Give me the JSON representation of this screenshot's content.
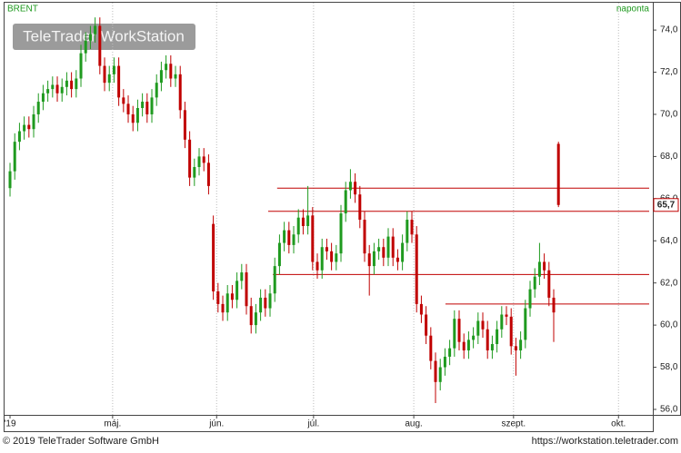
{
  "chart_data": {
    "type": "candlestick",
    "title": "BRENT",
    "subtitle": "naponta",
    "watermark": "TeleTrader WorkStation",
    "footer_left": "© 2019 TeleTrader Software GmbH",
    "footer_right": "https://workstation.teletrader.com",
    "up_color": "#1f9a1f",
    "down_color": "#c00000",
    "line_color": "#c00000",
    "xlim": [
      -1.35,
      135.96
    ],
    "ylim": [
      55.74,
      75.34
    ],
    "xticks": [
      {
        "value": 0,
        "label": "'19"
      },
      {
        "value": 21.7,
        "label": "máj."
      },
      {
        "value": 43.7,
        "label": "jún."
      },
      {
        "value": 64.2,
        "label": "júl."
      },
      {
        "value": 85.4,
        "label": "aug."
      },
      {
        "value": 106.5,
        "label": "szept."
      },
      {
        "value": 128.7,
        "label": "okt."
      }
    ],
    "yticks": [
      {
        "value": 56,
        "label": "56,0"
      },
      {
        "value": 58,
        "label": "58,0"
      },
      {
        "value": 60,
        "label": "60,0"
      },
      {
        "value": 62,
        "label": "62,0"
      },
      {
        "value": 64,
        "label": "64,0"
      },
      {
        "value": 66,
        "label": "66,0"
      },
      {
        "value": 68,
        "label": "68,0"
      },
      {
        "value": 70,
        "label": "70,0"
      },
      {
        "value": 72,
        "label": "72,0"
      },
      {
        "value": 74,
        "label": "74,0"
      }
    ],
    "grid": true,
    "last_price": {
      "value": 65.7,
      "label": "65,7"
    },
    "hlines": [
      {
        "value": 66.5,
        "from": 56.5
      },
      {
        "value": 65.4,
        "from": 54.6
      },
      {
        "value": 62.4,
        "from": 55.6
      },
      {
        "value": 61.0,
        "from": 92.1
      }
    ],
    "open": [
      66.5,
      67.3,
      68.7,
      69.2,
      69.5,
      69.3,
      70.0,
      70.6,
      71.0,
      71.2,
      71.4,
      71.0,
      71.3,
      71.6,
      71.2,
      71.7,
      72.9,
      73.5,
      73.8,
      74.2,
      72.3,
      71.5,
      71.9,
      72.3,
      70.8,
      70.5,
      70.0,
      69.6,
      70.3,
      70.6,
      70.0,
      70.8,
      71.5,
      72.1,
      72.4,
      71.7,
      71.9,
      70.2,
      68.8,
      67.0,
      67.5,
      68.0,
      67.7,
      64.8,
      61.6,
      61.0,
      60.6,
      61.5,
      61.2,
      62.1,
      62.5,
      60.9,
      60.0,
      60.6,
      61.3,
      60.8,
      61.5,
      62.8,
      63.9,
      64.5,
      63.8,
      64.3,
      65.1,
      64.7,
      65.2,
      63.0,
      62.6,
      63.7,
      63.5,
      63.0,
      63.4,
      65.3,
      66.4,
      66.8,
      66.2,
      65.0,
      63.4,
      62.8,
      63.5,
      63.7,
      63.2,
      64.2,
      63.2,
      63.0,
      63.9,
      65.0,
      64.3,
      61.0,
      60.5,
      59.5,
      58.3,
      57.3,
      58.0,
      58.5,
      58.9,
      60.3,
      59.2,
      58.8,
      59.3,
      59.5,
      60.2,
      59.8,
      58.8,
      59.1,
      59.8,
      60.5,
      60.4,
      59.0,
      58.8,
      59.3,
      60.8,
      61.7,
      62.3,
      63.0,
      62.6,
      61.3,
      68.6
    ],
    "high": [
      67.7,
      69.1,
      69.6,
      69.9,
      69.9,
      70.4,
      71.0,
      71.4,
      71.6,
      71.8,
      71.8,
      71.7,
      72.0,
      72.0,
      72.1,
      73.3,
      73.9,
      74.2,
      74.6,
      74.6,
      72.7,
      72.3,
      72.7,
      72.7,
      71.2,
      70.9,
      70.4,
      70.7,
      71.0,
      71.0,
      71.2,
      71.9,
      72.5,
      72.8,
      72.8,
      72.3,
      72.3,
      70.6,
      69.2,
      67.9,
      68.4,
      68.4,
      68.1,
      65.2,
      62.0,
      61.4,
      61.9,
      61.9,
      62.5,
      62.9,
      62.9,
      61.3,
      61.0,
      61.7,
      61.7,
      61.9,
      63.2,
      64.3,
      64.9,
      64.9,
      64.7,
      65.5,
      65.5,
      66.6,
      65.6,
      63.4,
      64.1,
      64.1,
      63.9,
      63.8,
      65.7,
      66.8,
      67.4,
      67.2,
      66.6,
      65.4,
      63.8,
      63.9,
      64.1,
      64.1,
      64.6,
      64.6,
      63.6,
      64.3,
      65.4,
      65.4,
      64.7,
      61.4,
      60.9,
      59.9,
      58.7,
      58.4,
      58.9,
      59.3,
      60.7,
      60.7,
      59.6,
      59.7,
      59.9,
      60.6,
      60.6,
      60.2,
      59.5,
      60.2,
      60.9,
      60.9,
      60.8,
      59.4,
      59.7,
      61.2,
      62.1,
      62.7,
      63.9,
      63.4,
      63.0,
      61.7,
      68.7
    ],
    "low": [
      66.1,
      66.9,
      68.3,
      68.8,
      68.9,
      68.9,
      69.6,
      70.2,
      70.6,
      70.8,
      70.6,
      70.6,
      70.9,
      70.8,
      70.8,
      71.3,
      72.5,
      73.1,
      73.4,
      71.9,
      71.1,
      71.1,
      71.5,
      70.4,
      70.1,
      69.6,
      69.2,
      69.2,
      69.9,
      69.6,
      69.6,
      70.4,
      71.1,
      71.7,
      71.3,
      71.3,
      69.8,
      68.4,
      66.6,
      66.6,
      67.1,
      67.3,
      66.2,
      61.2,
      60.6,
      60.2,
      60.2,
      60.8,
      60.8,
      61.7,
      60.5,
      59.6,
      59.6,
      60.2,
      60.4,
      60.4,
      61.1,
      62.4,
      63.5,
      63.4,
      63.4,
      63.9,
      64.3,
      64.3,
      62.6,
      62.2,
      62.2,
      63.1,
      62.6,
      62.6,
      63.0,
      64.9,
      66.0,
      65.8,
      64.6,
      63.0,
      61.4,
      62.4,
      63.1,
      62.8,
      62.8,
      62.8,
      62.6,
      62.6,
      63.5,
      63.9,
      60.6,
      60.1,
      59.1,
      57.9,
      56.3,
      56.9,
      57.6,
      58.1,
      58.5,
      58.8,
      58.4,
      58.4,
      58.9,
      59.1,
      59.4,
      58.4,
      58.4,
      58.7,
      59.4,
      60.0,
      58.6,
      57.6,
      58.4,
      58.9,
      60.4,
      61.3,
      61.9,
      62.2,
      60.9,
      59.2,
      65.6
    ],
    "close": [
      67.3,
      68.7,
      69.2,
      69.5,
      69.3,
      70.0,
      70.6,
      71.0,
      71.2,
      71.4,
      71.0,
      71.3,
      71.6,
      71.2,
      71.7,
      72.9,
      73.5,
      73.8,
      74.2,
      72.3,
      71.5,
      71.9,
      72.3,
      70.8,
      70.5,
      70.0,
      69.6,
      70.3,
      70.6,
      70.0,
      70.8,
      71.5,
      72.1,
      72.4,
      71.7,
      71.9,
      70.2,
      68.8,
      67.0,
      67.5,
      68.0,
      67.7,
      66.6,
      61.6,
      61.0,
      60.6,
      61.5,
      61.2,
      62.1,
      62.5,
      60.9,
      60.0,
      60.6,
      61.3,
      60.8,
      61.5,
      62.8,
      63.9,
      64.5,
      63.8,
      64.3,
      65.1,
      64.7,
      65.2,
      63.0,
      62.6,
      63.7,
      63.5,
      63.0,
      63.4,
      65.3,
      66.4,
      66.8,
      66.2,
      65.0,
      63.4,
      62.8,
      63.5,
      63.7,
      63.2,
      64.2,
      63.2,
      63.0,
      63.9,
      65.0,
      64.3,
      61.0,
      60.5,
      59.5,
      58.3,
      57.3,
      58.0,
      58.5,
      58.9,
      60.3,
      59.2,
      58.8,
      59.3,
      59.5,
      60.2,
      59.8,
      58.8,
      59.1,
      59.8,
      60.5,
      60.4,
      59.0,
      58.8,
      59.3,
      60.8,
      61.7,
      62.3,
      63.0,
      62.6,
      61.3,
      60.6,
      65.7
    ]
  }
}
